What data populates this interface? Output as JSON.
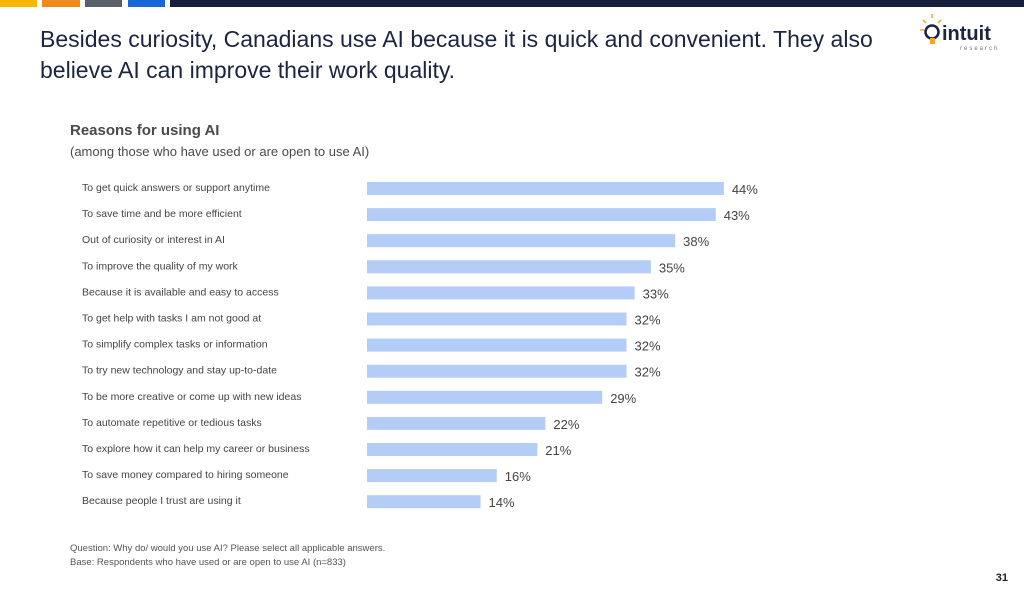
{
  "slide": {
    "title": "Besides curiosity, Canadians use AI because it is quick and convenient. They also believe AI can improve their work quality.",
    "logo_text": "intuit",
    "logo_subtext": "research",
    "accent_colors": [
      "#f5b800",
      "#f08a1c",
      "#5a6068",
      "#1a66d6",
      "#161f3b"
    ],
    "question": "Question: Why do/ would you use AI? Please select all applicable answers.",
    "base": "Base: Respondents who have used or are open to use AI (n=833)",
    "page_number": "31"
  },
  "chart_data": {
    "type": "bar",
    "orientation": "horizontal",
    "title": "Reasons for using AI",
    "subtitle": "(among those who have used or are open to use AI)",
    "categories": [
      "To get quick answers or support anytime",
      "To save time and be more efficient",
      "Out of curiosity or interest in AI",
      "To improve the quality of my work",
      "Because it is available and easy to access",
      "To get help with tasks I am not good at",
      "To simplify complex tasks or information",
      "To try new technology and stay up-to-date",
      "To be more creative or come up with new ideas",
      "To automate repetitive or tedious tasks",
      "To explore how it can help my career or business",
      "To save money compared to hiring someone",
      "Because people I trust are using it"
    ],
    "values": [
      44,
      43,
      38,
      35,
      33,
      32,
      32,
      32,
      29,
      22,
      21,
      16,
      14
    ],
    "data_labels": [
      "44%",
      "43%",
      "38%",
      "35%",
      "33%",
      "32%",
      "32%",
      "32%",
      "29%",
      "22%",
      "21%",
      "16%",
      "14%"
    ],
    "bar_color": "#b4cdf6",
    "grid": false,
    "axes_visible": false
  }
}
